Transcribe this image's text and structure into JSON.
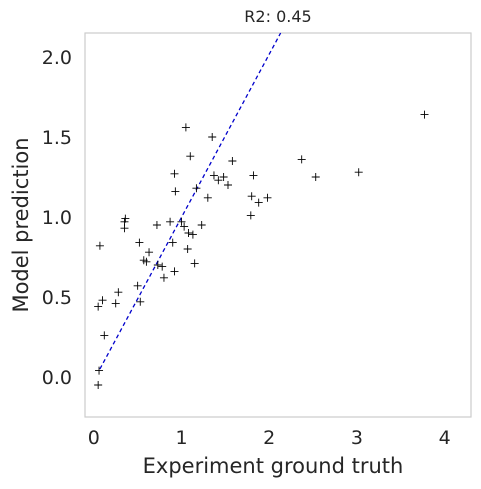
{
  "chart_data": {
    "type": "scatter",
    "title": "R2: 0.45",
    "xlabel": "Experiment ground truth",
    "ylabel": "Model prediction",
    "xlim": [
      -0.1,
      4.3
    ],
    "ylim": [
      -0.25,
      2.15
    ],
    "xticks": [
      0,
      1,
      2,
      3,
      4
    ],
    "yticks": [
      0.0,
      0.5,
      1.0,
      1.5,
      2.0
    ],
    "xtick_labels": [
      "0",
      "1",
      "2",
      "3",
      "4"
    ],
    "ytick_labels": [
      "0.0",
      "0.5",
      "1.0",
      "1.5",
      "2.0"
    ],
    "grid": false,
    "marker": "+",
    "marker_color": "#000000",
    "reference_line": {
      "style": "dashed",
      "color": "#0000cc",
      "from": [
        0.07,
        0.05
      ],
      "to": [
        2.13,
        2.15
      ]
    },
    "points": [
      [
        0.07,
        0.82
      ],
      [
        0.05,
        0.44
      ],
      [
        0.1,
        0.48
      ],
      [
        0.12,
        0.26
      ],
      [
        0.06,
        0.04
      ],
      [
        0.05,
        -0.05
      ],
      [
        0.25,
        0.46
      ],
      [
        0.28,
        0.53
      ],
      [
        0.35,
        0.93
      ],
      [
        0.35,
        0.97
      ],
      [
        0.36,
        0.99
      ],
      [
        0.52,
        0.84
      ],
      [
        0.5,
        0.57
      ],
      [
        0.53,
        0.47
      ],
      [
        0.57,
        0.73
      ],
      [
        0.6,
        0.72
      ],
      [
        0.63,
        0.78
      ],
      [
        0.72,
        0.95
      ],
      [
        0.73,
        0.7
      ],
      [
        0.78,
        0.69
      ],
      [
        0.8,
        0.62
      ],
      [
        0.87,
        0.97
      ],
      [
        0.9,
        0.84
      ],
      [
        0.92,
        0.66
      ],
      [
        0.92,
        1.27
      ],
      [
        0.93,
        1.16
      ],
      [
        1.0,
        0.97
      ],
      [
        1.03,
        0.94
      ],
      [
        1.05,
        1.56
      ],
      [
        1.07,
        0.8
      ],
      [
        1.08,
        0.9
      ],
      [
        1.1,
        1.38
      ],
      [
        1.13,
        0.89
      ],
      [
        1.15,
        0.71
      ],
      [
        1.17,
        1.18
      ],
      [
        1.23,
        0.95
      ],
      [
        1.3,
        1.12
      ],
      [
        1.35,
        1.5
      ],
      [
        1.37,
        1.26
      ],
      [
        1.42,
        1.23
      ],
      [
        1.48,
        1.25
      ],
      [
        1.53,
        1.2
      ],
      [
        1.58,
        1.35
      ],
      [
        1.79,
        1.01
      ],
      [
        1.8,
        1.13
      ],
      [
        1.82,
        1.26
      ],
      [
        1.88,
        1.09
      ],
      [
        1.98,
        1.12
      ],
      [
        2.37,
        1.36
      ],
      [
        2.53,
        1.25
      ],
      [
        3.02,
        1.28
      ],
      [
        3.77,
        1.64
      ]
    ]
  }
}
